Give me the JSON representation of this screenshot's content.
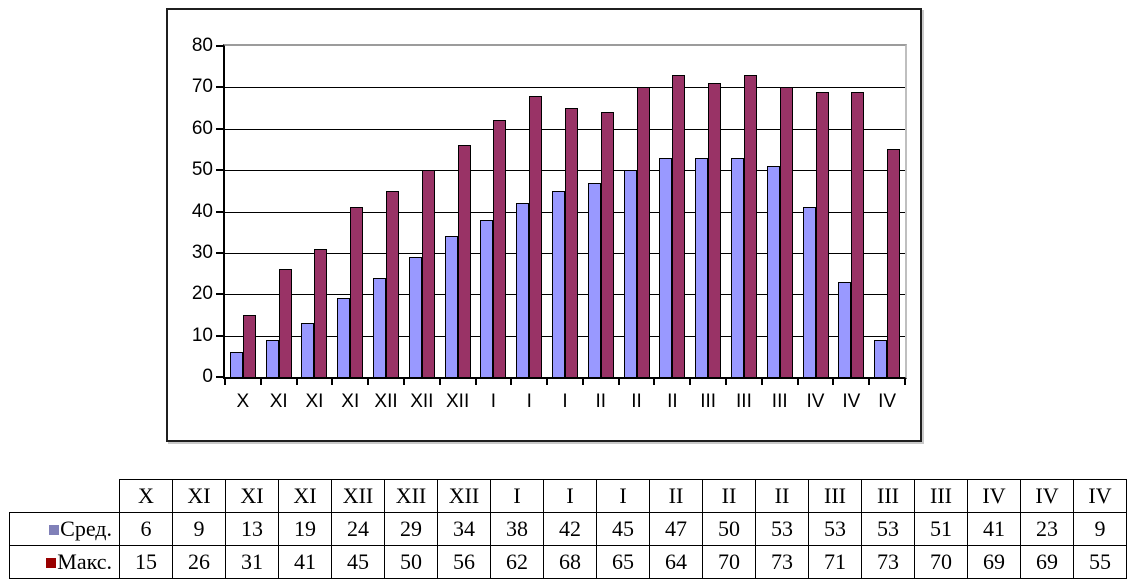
{
  "chart_data": {
    "type": "bar",
    "title": "",
    "xlabel": "",
    "ylabel": "",
    "categories": [
      "X",
      "XI",
      "XI",
      "XI",
      "XII",
      "XII",
      "XII",
      "I",
      "I",
      "I",
      "II",
      "II",
      "II",
      "III",
      "III",
      "III",
      "IV",
      "IV",
      "IV"
    ],
    "series": [
      {
        "name": "Сред.",
        "bar_color": "#9999ff",
        "legend_marker_color": "#8080b8",
        "values": [
          6,
          9,
          13,
          19,
          24,
          29,
          34,
          38,
          42,
          45,
          47,
          50,
          53,
          53,
          53,
          51,
          41,
          23,
          9
        ]
      },
      {
        "name": "Макс.",
        "bar_color": "#993366",
        "legend_marker_color": "#990000",
        "values": [
          15,
          26,
          31,
          41,
          45,
          50,
          56,
          62,
          68,
          65,
          64,
          70,
          73,
          71,
          73,
          70,
          69,
          69,
          55
        ]
      }
    ],
    "ylim": [
      0,
      80
    ],
    "yticks": [
      0,
      10,
      20,
      30,
      40,
      50,
      60,
      70,
      80
    ],
    "grid": true,
    "gridline_color": "#000000",
    "legend_position": "data-table-below-chart",
    "table": {
      "corner_label": ""
    }
  }
}
